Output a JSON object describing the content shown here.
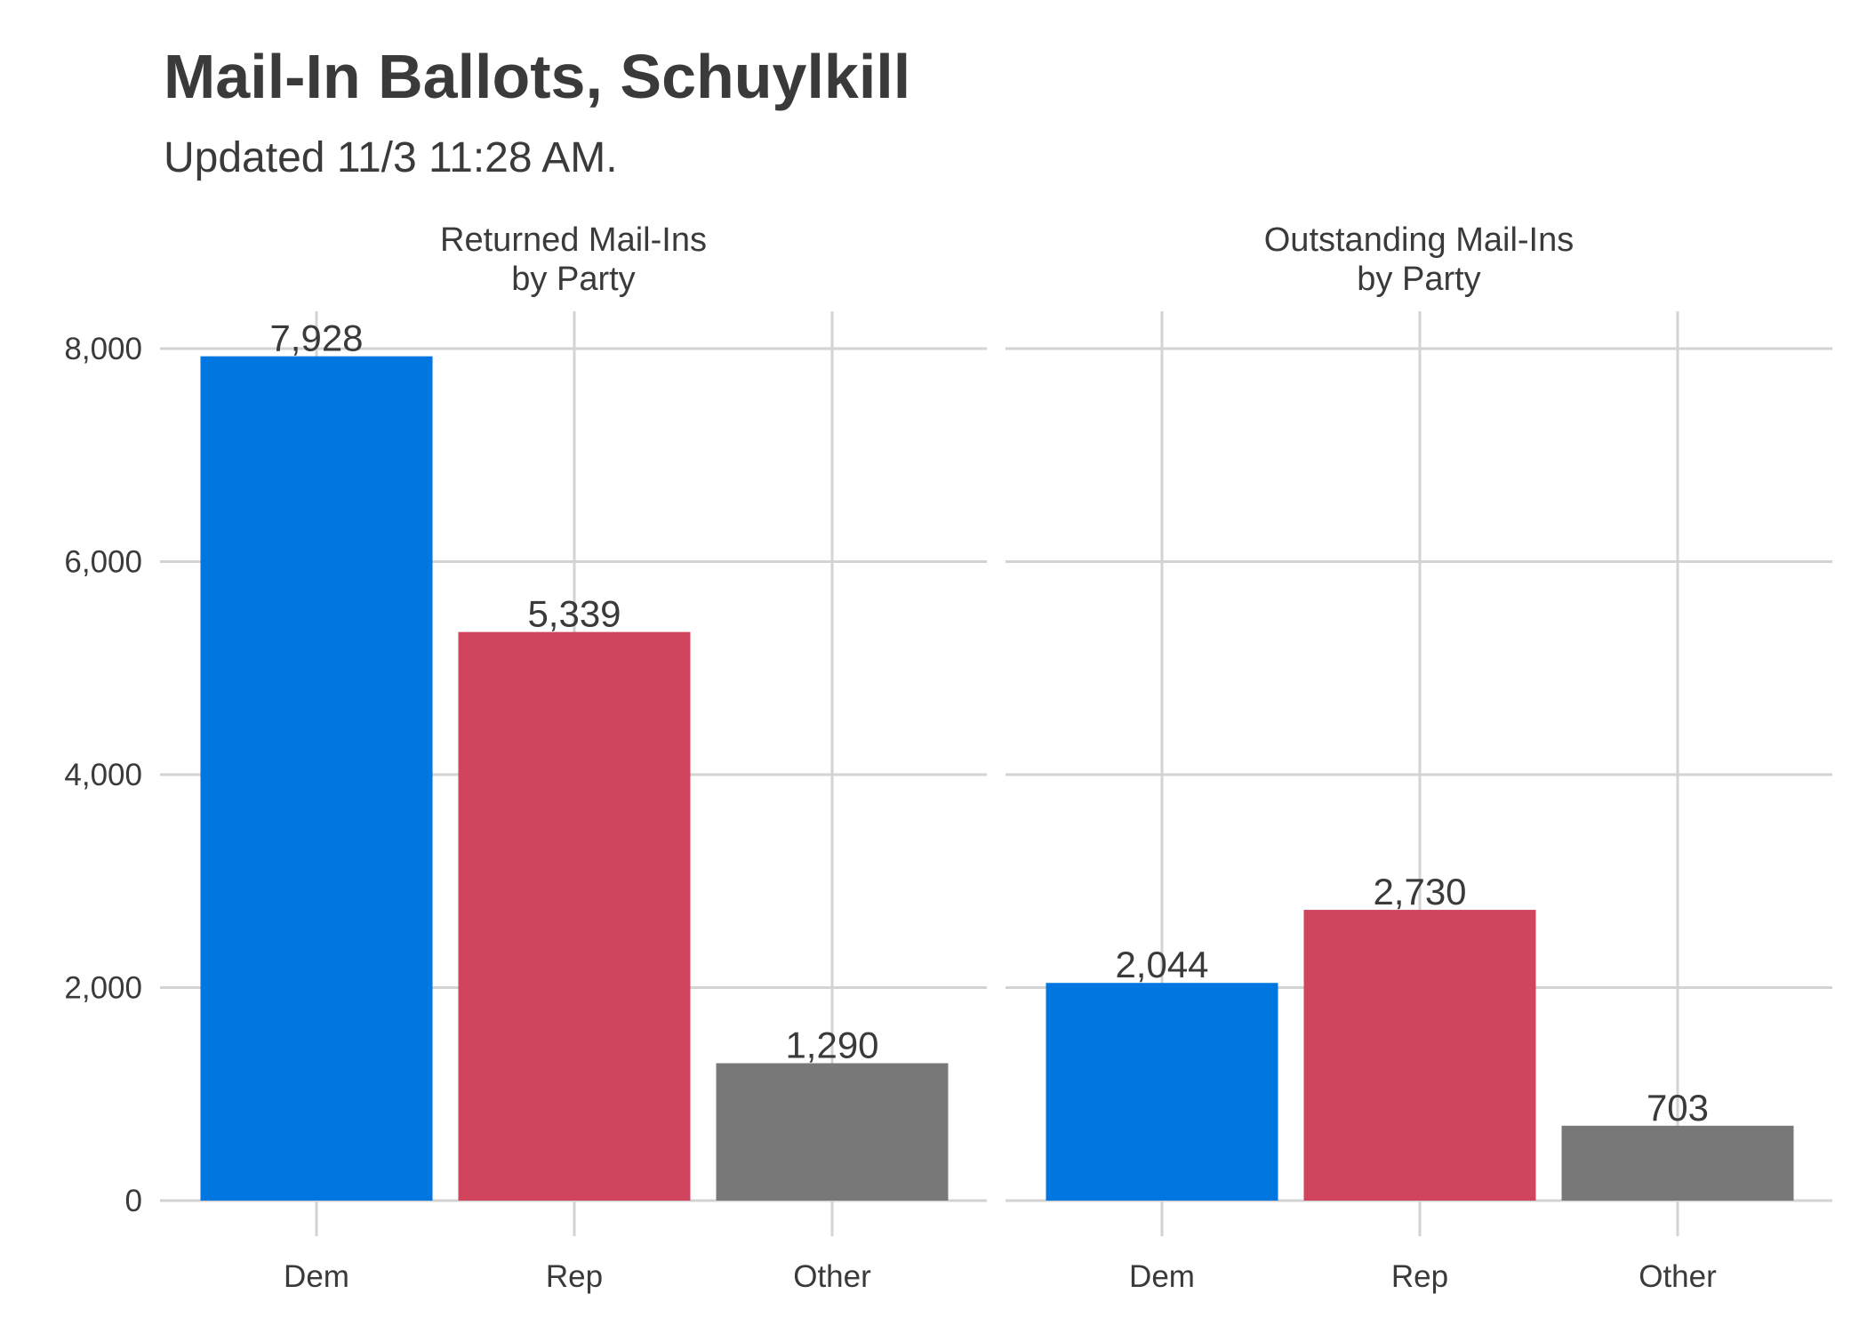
{
  "title": "Mail-In Ballots, Schuylkill",
  "subtitle": "Updated 11/3 11:28 AM.",
  "colors": {
    "Dem": "#0077E0",
    "Rep": "#D0445E",
    "Other": "#787878",
    "grid": "#d3d3d3",
    "text": "#3a3a3a"
  },
  "chart_data": {
    "type": "bar",
    "categories": [
      "Dem",
      "Rep",
      "Other"
    ],
    "ylim": [
      0,
      8000
    ],
    "y_ticks": [
      0,
      2000,
      4000,
      6000,
      8000
    ],
    "y_tick_labels": [
      "0",
      "2,000",
      "4,000",
      "6,000",
      "8,000"
    ],
    "grid": true,
    "legend": "none",
    "xlabel": "",
    "ylabel": "",
    "panels": [
      {
        "title_lines": [
          "Returned Mail-Ins",
          "by Party"
        ],
        "values": [
          7928,
          5339,
          1290
        ],
        "value_labels": [
          "7,928",
          "5,339",
          "1,290"
        ]
      },
      {
        "title_lines": [
          "Outstanding Mail-Ins",
          "by Party"
        ],
        "values": [
          2044,
          2730,
          703
        ],
        "value_labels": [
          "2,044",
          "2,730",
          "703"
        ]
      }
    ]
  }
}
